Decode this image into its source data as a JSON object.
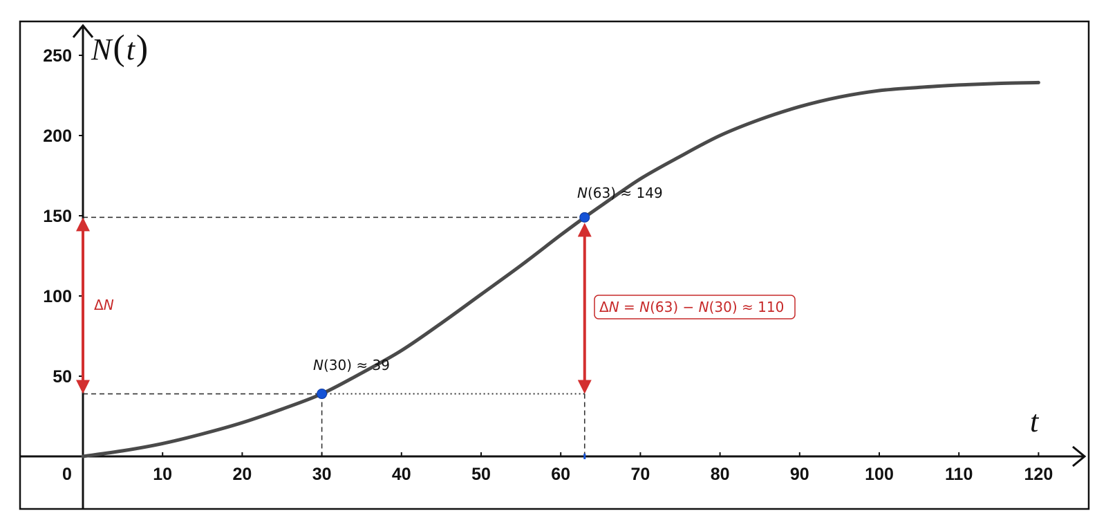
{
  "colors": {
    "curve": "#4a4a4a",
    "axis": "#111111",
    "point": "#1452d6",
    "delta": "#d32f2f",
    "delta_text": "#c62828",
    "guide": "#333333"
  },
  "chart_data": {
    "type": "line",
    "title": "",
    "xlabel": "t",
    "ylabel": "N(t)",
    "xlim": [
      -8,
      126
    ],
    "ylim": [
      -33,
      270
    ],
    "x_ticks": [
      10,
      20,
      30,
      40,
      50,
      60,
      70,
      80,
      90,
      100,
      110,
      120
    ],
    "x_tick_labels": [
      "10",
      "20",
      "30",
      "40",
      "50",
      "60",
      "70",
      "80",
      "90",
      "100",
      "110",
      "120"
    ],
    "y_ticks": [
      50,
      100,
      150,
      200,
      250
    ],
    "y_tick_labels": [
      "50",
      "100",
      "150",
      "200",
      "250"
    ],
    "origin_label": "0",
    "grid": false,
    "series": [
      {
        "values_x": [
          0,
          5,
          10,
          15,
          20,
          25,
          30,
          35,
          40,
          45,
          50,
          55,
          60,
          63,
          65,
          70,
          75,
          80,
          85,
          90,
          95,
          100,
          105,
          110,
          115,
          120
        ],
        "values_y": [
          0,
          3.5,
          8,
          14,
          21,
          29.5,
          39,
          52,
          66,
          83,
          101,
          119,
          138,
          149,
          156,
          173,
          187,
          200,
          210,
          218,
          224,
          228,
          230,
          231.5,
          232.5,
          233
        ]
      }
    ],
    "points": [
      {
        "x": 30,
        "y": 39,
        "label_var": "N",
        "label_rest": "(30) ≈ 39"
      },
      {
        "x": 63,
        "y": 149,
        "label_var": "N",
        "label_rest": "(63) ≈ 149"
      }
    ],
    "annotations": {
      "delta_left": {
        "symbol": "Δ",
        "var": "N"
      },
      "delta_box": {
        "symbol": "Δ",
        "var1": "N",
        "eq": " = ",
        "var2": "N",
        "mid": "(63) − ",
        "var3": "N",
        "end": "(30) ≈ 110"
      }
    }
  }
}
